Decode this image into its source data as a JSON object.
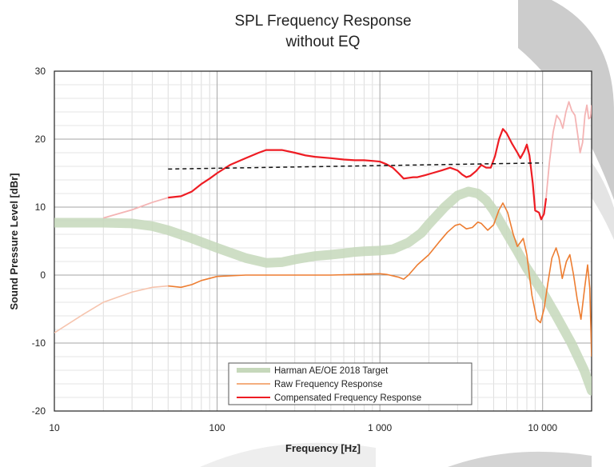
{
  "chart_data": {
    "type": "line",
    "title": "SPL Frequency Response",
    "subtitle": "without EQ",
    "xlabel": "Frequency [Hz]",
    "ylabel": "Sound Pressure Level [dBr]",
    "x_scale": "log",
    "xlim": [
      10,
      20000
    ],
    "ylim": [
      -20,
      30
    ],
    "x_ticks": [
      10,
      100,
      1000,
      10000
    ],
    "x_tick_labels": [
      "10",
      "100",
      "1 000",
      "10 000"
    ],
    "y_ticks": [
      -20,
      -10,
      0,
      10,
      20,
      30
    ],
    "grid": true,
    "legend_position": "bottom-center",
    "series": [
      {
        "name": "Harman AE/OE 2018 Target",
        "color": "#c6d8bb",
        "style": "thick",
        "points": [
          [
            10,
            7.7
          ],
          [
            20,
            7.7
          ],
          [
            30,
            7.6
          ],
          [
            40,
            7.2
          ],
          [
            50,
            6.6
          ],
          [
            70,
            5.4
          ],
          [
            100,
            4.0
          ],
          [
            150,
            2.5
          ],
          [
            200,
            1.8
          ],
          [
            250,
            1.9
          ],
          [
            300,
            2.3
          ],
          [
            400,
            2.8
          ],
          [
            500,
            3.0
          ],
          [
            600,
            3.2
          ],
          [
            700,
            3.4
          ],
          [
            800,
            3.5
          ],
          [
            1000,
            3.6
          ],
          [
            1200,
            3.8
          ],
          [
            1500,
            4.8
          ],
          [
            1800,
            6.2
          ],
          [
            2000,
            7.5
          ],
          [
            2500,
            10.0
          ],
          [
            3000,
            11.7
          ],
          [
            3500,
            12.3
          ],
          [
            4000,
            12.0
          ],
          [
            4500,
            11.0
          ],
          [
            5000,
            9.5
          ],
          [
            6000,
            6.2
          ],
          [
            7000,
            3.5
          ],
          [
            8000,
            1.0
          ],
          [
            10000,
            -2.5
          ],
          [
            12000,
            -5.8
          ],
          [
            15000,
            -10.0
          ],
          [
            18000,
            -14.0
          ],
          [
            20000,
            -17.0
          ]
        ]
      },
      {
        "name": "Raw Frequency Response",
        "color": "#ed7d31",
        "style": "thin",
        "points": [
          [
            10,
            -8.5
          ],
          [
            15,
            -5.8
          ],
          [
            20,
            -4.0
          ],
          [
            30,
            -2.5
          ],
          [
            40,
            -1.8
          ],
          [
            50,
            -1.6
          ],
          [
            60,
            -1.8
          ],
          [
            70,
            -1.4
          ],
          [
            80,
            -0.8
          ],
          [
            100,
            -0.2
          ],
          [
            150,
            0.0
          ],
          [
            200,
            0.0
          ],
          [
            300,
            0.0
          ],
          [
            500,
            0.0
          ],
          [
            700,
            0.1
          ],
          [
            1000,
            0.2
          ],
          [
            1100,
            0.1
          ],
          [
            1300,
            -0.3
          ],
          [
            1400,
            -0.6
          ],
          [
            1500,
            0.0
          ],
          [
            1700,
            1.5
          ],
          [
            2000,
            3.0
          ],
          [
            2300,
            4.8
          ],
          [
            2600,
            6.3
          ],
          [
            2900,
            7.3
          ],
          [
            3100,
            7.5
          ],
          [
            3400,
            6.8
          ],
          [
            3700,
            7.0
          ],
          [
            4000,
            7.8
          ],
          [
            4200,
            7.6
          ],
          [
            4600,
            6.6
          ],
          [
            5000,
            7.4
          ],
          [
            5400,
            9.6
          ],
          [
            5700,
            10.6
          ],
          [
            6100,
            9.2
          ],
          [
            6600,
            6.0
          ],
          [
            7000,
            4.2
          ],
          [
            7600,
            5.4
          ],
          [
            8000,
            3.0
          ],
          [
            8600,
            -3.0
          ],
          [
            9200,
            -6.5
          ],
          [
            9700,
            -7.0
          ],
          [
            10200,
            -5.0
          ],
          [
            10800,
            -1.0
          ],
          [
            11400,
            2.5
          ],
          [
            12100,
            4.0
          ],
          [
            12600,
            2.6
          ],
          [
            13200,
            -0.5
          ],
          [
            14000,
            2.0
          ],
          [
            14700,
            3.0
          ],
          [
            15500,
            0.0
          ],
          [
            16300,
            -3.5
          ],
          [
            17200,
            -6.5
          ],
          [
            18100,
            -2.0
          ],
          [
            18900,
            1.5
          ],
          [
            19500,
            -2.0
          ],
          [
            20000,
            -12.0
          ]
        ]
      },
      {
        "name": "Compensated Frequency Response",
        "color": "#ee1c23",
        "style": "medium",
        "points": [
          [
            20,
            8.4
          ],
          [
            30,
            9.6
          ],
          [
            40,
            10.7
          ],
          [
            50,
            11.4
          ],
          [
            60,
            11.6
          ],
          [
            70,
            12.3
          ],
          [
            80,
            13.4
          ],
          [
            90,
            14.2
          ],
          [
            100,
            15.0
          ],
          [
            120,
            16.2
          ],
          [
            150,
            17.2
          ],
          [
            180,
            18.0
          ],
          [
            200,
            18.4
          ],
          [
            250,
            18.4
          ],
          [
            300,
            18.0
          ],
          [
            350,
            17.6
          ],
          [
            400,
            17.4
          ],
          [
            500,
            17.2
          ],
          [
            600,
            17.0
          ],
          [
            700,
            16.9
          ],
          [
            800,
            16.9
          ],
          [
            900,
            16.8
          ],
          [
            1000,
            16.7
          ],
          [
            1100,
            16.3
          ],
          [
            1200,
            15.8
          ],
          [
            1300,
            15.0
          ],
          [
            1400,
            14.2
          ],
          [
            1500,
            14.3
          ],
          [
            1600,
            14.4
          ],
          [
            1700,
            14.4
          ],
          [
            1900,
            14.7
          ],
          [
            2100,
            15.0
          ],
          [
            2400,
            15.4
          ],
          [
            2700,
            15.8
          ],
          [
            3000,
            15.4
          ],
          [
            3200,
            14.8
          ],
          [
            3400,
            14.4
          ],
          [
            3600,
            14.6
          ],
          [
            3900,
            15.3
          ],
          [
            4200,
            16.2
          ],
          [
            4500,
            15.8
          ],
          [
            4800,
            15.8
          ],
          [
            5100,
            17.5
          ],
          [
            5400,
            20.0
          ],
          [
            5700,
            21.5
          ],
          [
            6000,
            20.9
          ],
          [
            6500,
            19.3
          ],
          [
            7000,
            18.0
          ],
          [
            7300,
            17.2
          ],
          [
            7700,
            18.2
          ],
          [
            8000,
            19.2
          ],
          [
            8300,
            17.6
          ],
          [
            8700,
            13.5
          ],
          [
            9000,
            9.5
          ],
          [
            9500,
            9.2
          ],
          [
            9800,
            8.2
          ],
          [
            10200,
            9.0
          ],
          [
            10500,
            11.3
          ],
          [
            11000,
            16.5
          ],
          [
            11600,
            21.0
          ],
          [
            12200,
            23.5
          ],
          [
            12800,
            22.8
          ],
          [
            13300,
            21.6
          ],
          [
            13900,
            24.0
          ],
          [
            14500,
            25.5
          ],
          [
            15100,
            24.2
          ],
          [
            15800,
            23.5
          ],
          [
            16400,
            20.8
          ],
          [
            17000,
            18.0
          ],
          [
            17600,
            19.5
          ],
          [
            18200,
            23.5
          ],
          [
            18700,
            25.0
          ],
          [
            19200,
            23.0
          ],
          [
            19700,
            23.2
          ],
          [
            20000,
            25.0
          ]
        ]
      },
      {
        "name": "",
        "color": "#111111",
        "style": "dashed",
        "points": [
          [
            50,
            15.6
          ],
          [
            10000,
            16.5
          ]
        ]
      }
    ],
    "colors": {
      "target": "#c6d8bb",
      "raw": "#ed7d31",
      "compensated": "#ee1c23",
      "compensated_faded": "#f4b4b4",
      "raw_faded": "#f6c4ae",
      "trend": "#111111"
    }
  }
}
